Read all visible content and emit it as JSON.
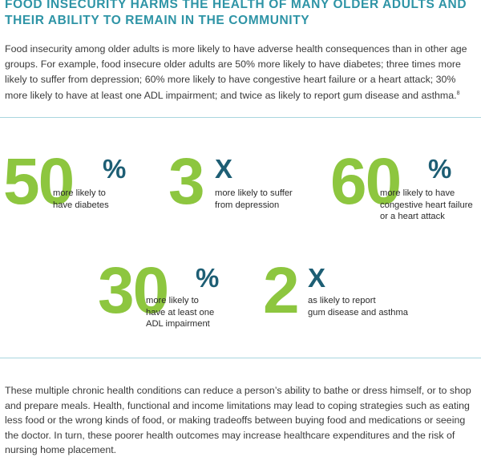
{
  "title": "FOOD INSECURITY HARMS THE HEALTH OF MANY OLDER ADULTS AND THEIR ABILITY TO REMAIN IN THE COMMUNITY",
  "intro": "Food insecurity among older adults is more likely to have adverse health consequences than in other age groups. For example, food insecure older adults are 50% more likely to have diabetes; three times more likely to suffer from depression; 60% more likely to have congestive heart failure or a heart attack; 30% more likely to have at least one ADL impairment; and twice as likely to report gum disease and asthma.",
  "intro_footnote": "8",
  "stats": [
    {
      "number": "50",
      "suffix": "%",
      "label_lines": [
        "more likely to",
        "have diabetes"
      ]
    },
    {
      "number": "3",
      "suffix": "X",
      "label_lines": [
        "more likely to suffer",
        "from depression"
      ]
    },
    {
      "number": "60",
      "suffix": "%",
      "label_lines": [
        "more likely to have",
        "congestive heart failure",
        "or a heart attack"
      ]
    },
    {
      "number": "30",
      "suffix": "%",
      "label_lines": [
        "more likely to",
        "have at least one",
        "ADL impairment"
      ]
    },
    {
      "number": "2",
      "suffix": "X",
      "label_lines": [
        "as likely to report",
        "gum disease and asthma"
      ]
    }
  ],
  "outro": "These multiple chronic health conditions can reduce a person’s ability to bathe or dress himself, or to shop and prepare meals. Health, functional and income limitations may lead to coping strategies such as eating less food or the wrong kinds of food, or making tradeoffs between buying food and medications or seeing the doctor. In turn, these poorer health outcomes may increase healthcare expenditures and the risk of nursing home placement.",
  "colors": {
    "title": "#2e94a6",
    "number": "#8dc63f",
    "suffix": "#1d5e74",
    "rule": "#a9d6df"
  }
}
